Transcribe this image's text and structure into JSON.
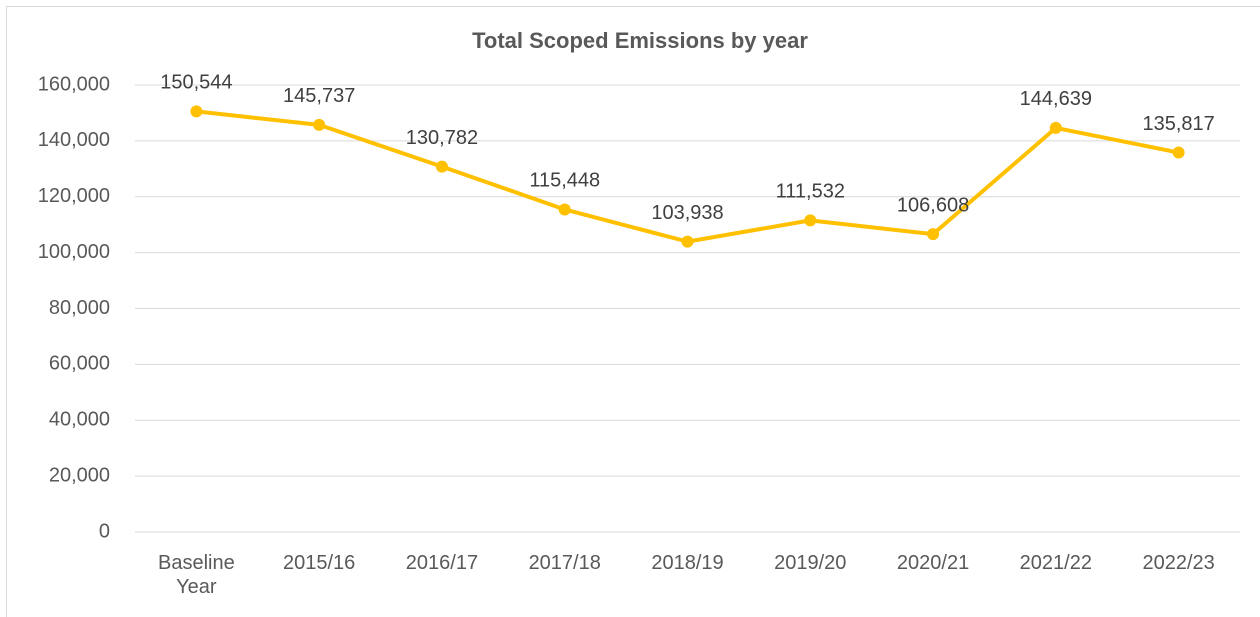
{
  "chart_data": {
    "type": "line",
    "title": "Total Scoped Emissions by year",
    "categories": [
      "Baseline Year",
      "2015/16",
      "2016/17",
      "2017/18",
      "2018/19",
      "2019/20",
      "2020/21",
      "2021/22",
      "2022/23"
    ],
    "values": [
      150544,
      145737,
      130782,
      115448,
      103938,
      111532,
      106608,
      144639,
      135817
    ],
    "value_labels": [
      "150,544",
      "145,737",
      "130,782",
      "115,448",
      "103,938",
      "111,532",
      "106,608",
      "144,639",
      "135,817"
    ],
    "color": "#ffc000",
    "ylim": [
      0,
      160000
    ],
    "yticks": [
      0,
      {
        "value": 20000,
        "label": "20,000"
      },
      {
        "value": 40000,
        "label": "40,000"
      },
      {
        "value": 60000,
        "label": "60,000"
      },
      {
        "value": 80000,
        "label": "80,000"
      },
      {
        "value": 100000,
        "label": "100,000"
      },
      {
        "value": 120000,
        "label": "120,000"
      },
      {
        "value": 140000,
        "label": "140,000"
      },
      {
        "value": 160000,
        "label": "160,000"
      }
    ],
    "grid": true
  }
}
